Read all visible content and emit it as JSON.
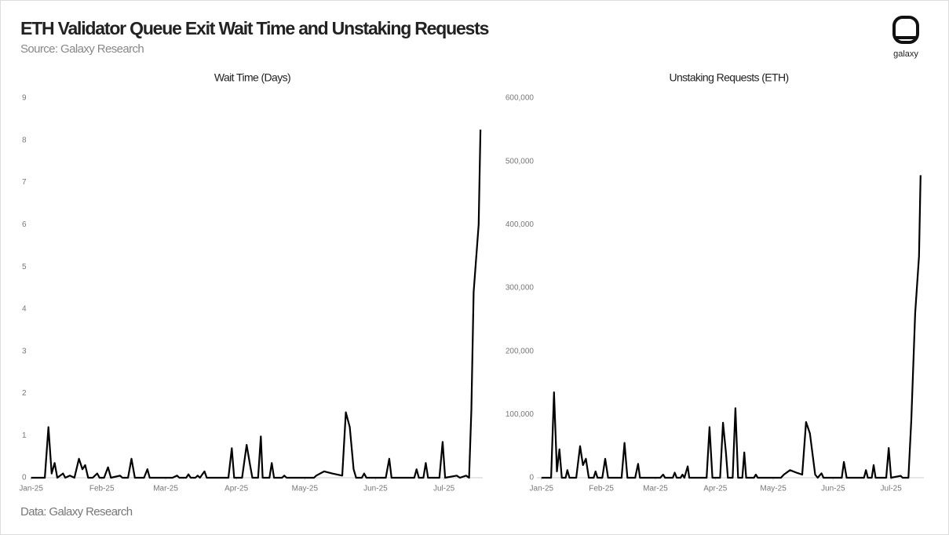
{
  "header": {
    "title": "ETH Validator Queue Exit Wait Time and Unstaking Requests",
    "subtitle": "Source: Galaxy Research"
  },
  "logo": "galaxy",
  "footer": "Data: Galaxy Research",
  "chart_data": [
    {
      "type": "line",
      "title": "Wait Time (Days)",
      "x": [
        0,
        6,
        7.6,
        9,
        10.3,
        11.5,
        14,
        15,
        17,
        19,
        21,
        22.5,
        23.7,
        25,
        27,
        29,
        30,
        32,
        33.7,
        35,
        39,
        40,
        42.5,
        44,
        45.5,
        49.5,
        51,
        52,
        62,
        64,
        65,
        68,
        69,
        70,
        72,
        73,
        74,
        76,
        77,
        86.5,
        88,
        89,
        92.5,
        94.5,
        96,
        97,
        99.5,
        100.7,
        101.5,
        104.5,
        105.5,
        106.5,
        110,
        111,
        112,
        124,
        125,
        128.5,
        132,
        136.4,
        138,
        139.7,
        141.4,
        142.5,
        145,
        146,
        147,
        155.5,
        157,
        158,
        168,
        169,
        170,
        172,
        173,
        174,
        179,
        180.4,
        181.5,
        186.6,
        188,
        190.7,
        192,
        193,
        194,
        196.2,
        197
      ],
      "series": [
        {
          "color": "#000000",
          "values": [
            0,
            0,
            1.2,
            0.1,
            0.35,
            0,
            0.1,
            0,
            0.05,
            0,
            0.45,
            0.2,
            0.3,
            0,
            0,
            0.1,
            0,
            0,
            0.25,
            0,
            0.05,
            0,
            0,
            0.45,
            0,
            0,
            0.2,
            0,
            0,
            0.05,
            0,
            0,
            0.08,
            0,
            0,
            0.05,
            0,
            0.15,
            0,
            0,
            0.7,
            0,
            0,
            0.78,
            0.3,
            0,
            0,
            0.98,
            0,
            0,
            0.35,
            0,
            0,
            0.05,
            0,
            0,
            0.05,
            0.15,
            0.1,
            0.05,
            1.55,
            1.2,
            0.2,
            0,
            0,
            0.1,
            0,
            0,
            0.45,
            0,
            0,
            0.2,
            0,
            0,
            0.35,
            0,
            0,
            0.85,
            0,
            0.05,
            0,
            0.05,
            0,
            1.6,
            4.4,
            6.0,
            8.25
          ]
        }
      ],
      "xlim": [
        -4,
        198
      ],
      "xticks": [
        {
          "value": 0,
          "label": "Jan-25"
        },
        {
          "value": 31,
          "label": "Feb-25"
        },
        {
          "value": 59,
          "label": "Mar-25"
        },
        {
          "value": 90,
          "label": "Apr-25"
        },
        {
          "value": 120,
          "label": "May-25"
        },
        {
          "value": 151,
          "label": "Jun-25"
        },
        {
          "value": 181,
          "label": "Jul-25"
        }
      ],
      "ylim": [
        0,
        9
      ],
      "yticks": [
        0,
        1,
        2,
        3,
        4,
        5,
        6,
        7,
        8,
        9
      ]
    },
    {
      "type": "line",
      "title": "Unstaking Requests (ETH)",
      "x": [
        0,
        5,
        6.5,
        8,
        9.3,
        10.5,
        12.5,
        13.4,
        14.5,
        17,
        18,
        20,
        21.5,
        23,
        24.5,
        27,
        28,
        29,
        31.5,
        33,
        34.5,
        41.5,
        43,
        44.5,
        48.5,
        50,
        51,
        61.5,
        63,
        64,
        68,
        69,
        70,
        72,
        73,
        74,
        75.7,
        76.5,
        85.5,
        87,
        88.5,
        92.5,
        94,
        95.5,
        96.5,
        99,
        100.4,
        101.8,
        104,
        105,
        106,
        110,
        111,
        112,
        124,
        125.5,
        128.7,
        132,
        135,
        137,
        139,
        141.7,
        143,
        145,
        146,
        155.5,
        156.6,
        158,
        167,
        168,
        169,
        171,
        172,
        173,
        178.5,
        179.8,
        181,
        186,
        187,
        190,
        191.5,
        193.5,
        195.5,
        196.3
      ],
      "series": [
        {
          "color": "#000000",
          "values": [
            0,
            0,
            135000,
            10000,
            45000,
            0,
            0,
            12000,
            0,
            0,
            0,
            50000,
            20000,
            30000,
            0,
            0,
            10000,
            0,
            0,
            30000,
            0,
            0,
            55000,
            0,
            0,
            22000,
            0,
            0,
            5000,
            0,
            0,
            8000,
            0,
            0,
            5000,
            0,
            18000,
            0,
            0,
            80000,
            0,
            0,
            87000,
            40000,
            0,
            0,
            110000,
            0,
            0,
            40000,
            0,
            0,
            5000,
            0,
            0,
            5000,
            12000,
            8000,
            5000,
            88000,
            70000,
            5000,
            0,
            7000,
            0,
            0,
            25000,
            0,
            0,
            12000,
            0,
            0,
            20000,
            0,
            0,
            47000,
            0,
            3000,
            0,
            0,
            92000,
            260000,
            350000,
            478000
          ]
        }
      ],
      "xlim": [
        -4,
        198
      ],
      "xticks": [
        {
          "value": 0,
          "label": "Jan-25"
        },
        {
          "value": 31,
          "label": "Feb-25"
        },
        {
          "value": 59,
          "label": "Mar-25"
        },
        {
          "value": 90,
          "label": "Apr-25"
        },
        {
          "value": 120,
          "label": "May-25"
        },
        {
          "value": 151,
          "label": "Jun-25"
        },
        {
          "value": 181,
          "label": "Jul-25"
        }
      ],
      "ylim": [
        0,
        600000
      ],
      "yticks": [
        0,
        {
          "value": 100000,
          "label": "100,000"
        },
        {
          "value": 200000,
          "label": "200,000"
        },
        {
          "value": 300000,
          "label": "300,000"
        },
        {
          "value": 400000,
          "label": "400,000"
        },
        {
          "value": 500000,
          "label": "500,000"
        },
        {
          "value": 600000,
          "label": "600,000"
        }
      ]
    }
  ]
}
